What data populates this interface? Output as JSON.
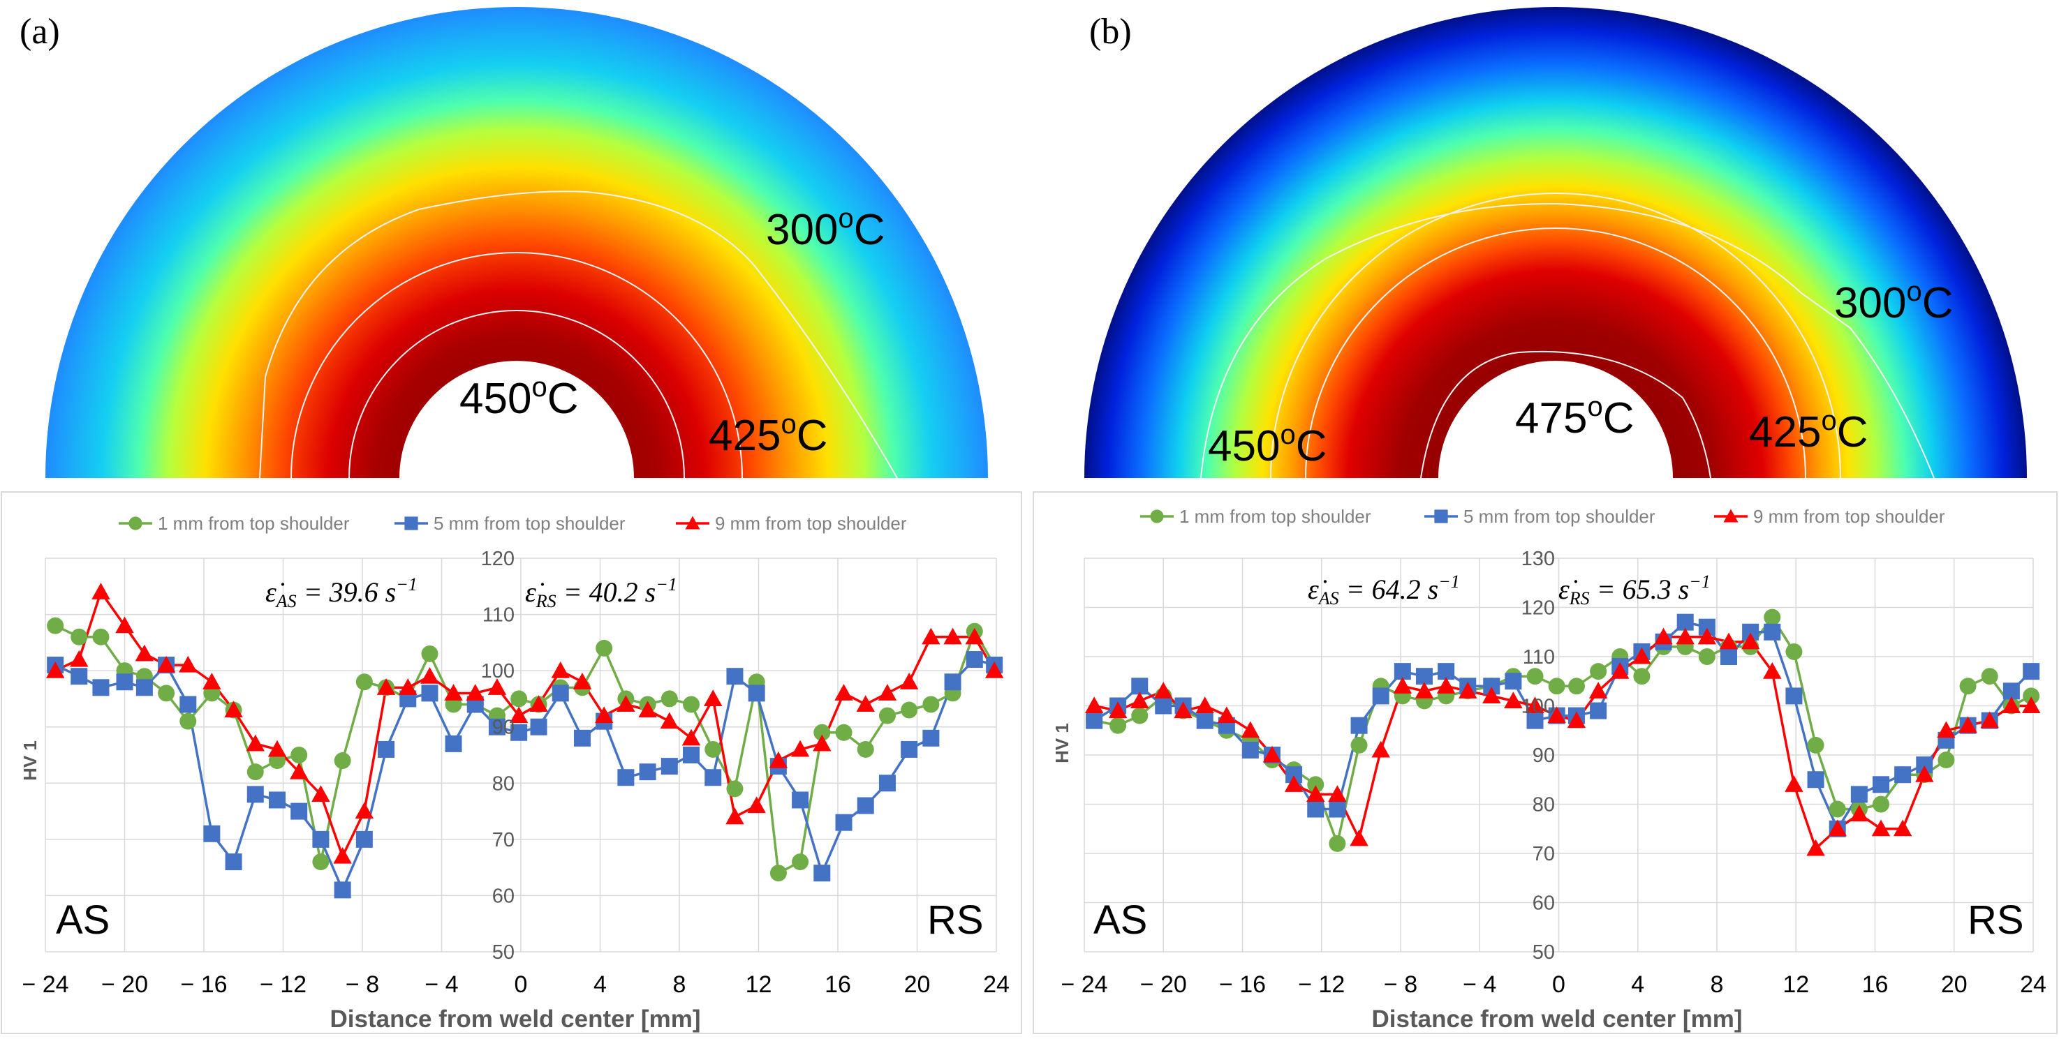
{
  "panels": [
    {
      "label": "(a)",
      "temps": {
        "t300": "300",
        "t425": "425",
        "t450": "450",
        "unit": "o",
        "unit_c": "C"
      },
      "rates": {
        "as_text": "ε̇",
        "as_sub": "AS",
        "as_val": "= 39.6 s",
        "exp": "−1",
        "rs_text": "ε̇",
        "rs_sub": "RS",
        "rs_val": "= 40.2 s"
      },
      "side_left": "AS",
      "side_right": "RS",
      "ylabel": "HV 1",
      "xlabel": "Distance from weld center [mm]"
    },
    {
      "label": "(b)",
      "temps": {
        "t300": "300",
        "t425": "425",
        "t450": "450",
        "t475": "475",
        "unit": "o",
        "unit_c": "C"
      },
      "rates": {
        "as_text": "ε̇",
        "as_sub": "AS",
        "as_val": "= 64.2 s",
        "exp": "−1",
        "rs_text": "ε̇",
        "rs_sub": "RS",
        "rs_val": "= 65.3 s"
      },
      "side_left": "AS",
      "side_right": "RS",
      "ylabel": "HV 1",
      "xlabel": "Distance from weld center [mm]"
    }
  ],
  "chart_data": [
    {
      "type": "line",
      "panel": "(a)",
      "xlabel": "Distance from weld center [mm]",
      "ylabel": "HV 1",
      "xlim": [
        -24,
        24
      ],
      "ylim": [
        50,
        120
      ],
      "xticks": [
        -24,
        -20,
        -16,
        -12,
        -8,
        -4,
        0,
        4,
        8,
        12,
        16,
        20,
        24
      ],
      "xtick_labels": [
        "− 24",
        "− 20",
        "− 16",
        "− 12",
        "− 8",
        "− 4",
        "0",
        "4",
        "8",
        "12",
        "16",
        "20",
        "24"
      ],
      "yticks": [
        50,
        60,
        70,
        80,
        90,
        100,
        110,
        120
      ],
      "grid": true,
      "legend_position": "top",
      "series": [
        {
          "name": "1 mm from top shoulder",
          "color": "#70ad47",
          "marker": "circle",
          "x": [
            -23.5,
            -22.3,
            -21.2,
            -20,
            -19,
            -17.9,
            -16.8,
            -15.6,
            -14.5,
            -13.4,
            -12.3,
            -11.2,
            -10.1,
            -9,
            -7.9,
            -6.8,
            -5.7,
            -4.6,
            -3.4,
            -2.3,
            -1.2,
            -0.1,
            0.9,
            2,
            3.1,
            4.2,
            5.3,
            6.4,
            7.5,
            8.6,
            9.7,
            10.8,
            11.9,
            13,
            14.1,
            15.2,
            16.3,
            17.4,
            18.5,
            19.6,
            20.7,
            21.8,
            22.9,
            23.9
          ],
          "values": [
            108,
            106,
            106,
            100,
            99,
            96,
            91,
            96,
            93,
            82,
            84,
            85,
            66,
            84,
            98,
            97,
            95,
            103,
            94,
            94,
            92,
            95,
            94,
            97,
            97,
            104,
            95,
            94,
            95,
            94,
            86,
            79,
            98,
            64,
            66,
            89,
            89,
            86,
            92,
            93,
            94,
            96,
            107,
            101
          ]
        },
        {
          "name": "5 mm from top shoulder",
          "color": "#4472c4",
          "marker": "square",
          "x": [
            -23.5,
            -22.3,
            -21.2,
            -20,
            -19,
            -17.9,
            -16.8,
            -15.6,
            -14.5,
            -13.4,
            -12.3,
            -11.2,
            -10.1,
            -9,
            -7.9,
            -6.8,
            -5.7,
            -4.6,
            -3.4,
            -2.3,
            -1.2,
            -0.1,
            0.9,
            2,
            3.1,
            4.2,
            5.3,
            6.4,
            7.5,
            8.6,
            9.7,
            10.8,
            11.9,
            13,
            14.1,
            15.2,
            16.3,
            17.4,
            18.5,
            19.6,
            20.7,
            21.8,
            22.9,
            23.9
          ],
          "values": [
            101,
            99,
            97,
            98,
            97,
            101,
            94,
            71,
            66,
            78,
            77,
            75,
            70,
            61,
            70,
            86,
            95,
            96,
            87,
            94,
            90,
            89,
            90,
            96,
            88,
            91,
            81,
            82,
            83,
            85,
            81,
            99,
            96,
            83,
            77,
            64,
            73,
            76,
            80,
            86,
            88,
            98,
            102,
            101
          ]
        },
        {
          "name": "9 mm from top shoulder",
          "color": "#ff0000",
          "marker": "triangle",
          "x": [
            -23.5,
            -22.3,
            -21.2,
            -20,
            -19,
            -17.9,
            -16.8,
            -15.6,
            -14.5,
            -13.4,
            -12.3,
            -11.2,
            -10.1,
            -9,
            -7.9,
            -6.8,
            -5.7,
            -4.6,
            -3.4,
            -2.3,
            -1.2,
            -0.1,
            0.9,
            2,
            3.1,
            4.2,
            5.3,
            6.4,
            7.5,
            8.6,
            9.7,
            10.8,
            11.9,
            13,
            14.1,
            15.2,
            16.3,
            17.4,
            18.5,
            19.6,
            20.7,
            21.8,
            22.9,
            23.9
          ],
          "values": [
            100,
            102,
            114,
            108,
            103,
            101,
            101,
            98,
            93,
            87,
            86,
            82,
            78,
            67,
            75,
            97,
            97,
            99,
            96,
            96,
            97,
            92,
            94,
            100,
            98,
            92,
            94,
            93,
            91,
            88,
            95,
            74,
            76,
            84,
            86,
            87,
            96,
            94,
            96,
            98,
            106,
            106,
            106,
            100
          ]
        }
      ]
    },
    {
      "type": "line",
      "panel": "(b)",
      "xlabel": "Distance from weld center [mm]",
      "ylabel": "HV 1",
      "xlim": [
        -24,
        24
      ],
      "ylim": [
        50,
        130
      ],
      "xticks": [
        -24,
        -20,
        -16,
        -12,
        -8,
        -4,
        0,
        4,
        8,
        12,
        16,
        20,
        24
      ],
      "xtick_labels": [
        "− 24",
        "− 20",
        "− 16",
        "− 12",
        "− 8",
        "− 4",
        "0",
        "4",
        "8",
        "12",
        "16",
        "20",
        "24"
      ],
      "yticks": [
        50,
        60,
        70,
        80,
        90,
        100,
        110,
        120,
        130
      ],
      "grid": true,
      "legend_position": "top",
      "series": [
        {
          "name": "1 mm from top shoulder",
          "color": "#70ad47",
          "marker": "circle",
          "x": [
            -23.5,
            -22.3,
            -21.2,
            -20,
            -19,
            -17.9,
            -16.8,
            -15.6,
            -14.5,
            -13.4,
            -12.3,
            -11.2,
            -10.1,
            -9,
            -7.9,
            -6.8,
            -5.7,
            -4.6,
            -3.4,
            -2.3,
            -1.2,
            -0.1,
            0.9,
            2,
            3.1,
            4.2,
            5.3,
            6.4,
            7.5,
            8.6,
            9.7,
            10.8,
            11.9,
            13,
            14.1,
            15.2,
            16.3,
            17.4,
            18.5,
            19.6,
            20.7,
            21.8,
            22.9,
            23.9
          ],
          "values": [
            97,
            96,
            98,
            102,
            99,
            97,
            95,
            93,
            89,
            87,
            84,
            72,
            92,
            104,
            102,
            101,
            102,
            103,
            104,
            106,
            106,
            104,
            104,
            107,
            110,
            106,
            112,
            112,
            110,
            112,
            112,
            118,
            111,
            92,
            79,
            79,
            80,
            86,
            86,
            89,
            104,
            106,
            100,
            102
          ]
        },
        {
          "name": "5 mm from top shoulder",
          "color": "#4472c4",
          "marker": "square",
          "x": [
            -23.5,
            -22.3,
            -21.2,
            -20,
            -19,
            -17.9,
            -16.8,
            -15.6,
            -14.5,
            -13.4,
            -12.3,
            -11.2,
            -10.1,
            -9,
            -7.9,
            -6.8,
            -5.7,
            -4.6,
            -3.4,
            -2.3,
            -1.2,
            -0.1,
            0.9,
            2,
            3.1,
            4.2,
            5.3,
            6.4,
            7.5,
            8.6,
            9.7,
            10.8,
            11.9,
            13,
            14.1,
            15.2,
            16.3,
            17.4,
            18.5,
            19.6,
            20.7,
            21.8,
            22.9,
            23.9
          ],
          "values": [
            97,
            100,
            104,
            100,
            100,
            97,
            96,
            91,
            90,
            86,
            79,
            79,
            96,
            102,
            107,
            106,
            107,
            104,
            104,
            105,
            97,
            98,
            98,
            99,
            108,
            111,
            113,
            117,
            116,
            110,
            115,
            115,
            102,
            85,
            75,
            82,
            84,
            86,
            88,
            93,
            96,
            97,
            103,
            107
          ]
        },
        {
          "name": "9 mm from top shoulder",
          "color": "#ff0000",
          "marker": "triangle",
          "x": [
            -23.5,
            -22.3,
            -21.2,
            -20,
            -19,
            -17.9,
            -16.8,
            -15.6,
            -14.5,
            -13.4,
            -12.3,
            -11.2,
            -10.1,
            -9,
            -7.9,
            -6.8,
            -5.7,
            -4.6,
            -3.4,
            -2.3,
            -1.2,
            -0.1,
            0.9,
            2,
            3.1,
            4.2,
            5.3,
            6.4,
            7.5,
            8.6,
            9.7,
            10.8,
            11.9,
            13,
            14.1,
            15.2,
            16.3,
            17.4,
            18.5,
            19.6,
            20.7,
            21.8,
            22.9,
            23.9
          ],
          "values": [
            100,
            99,
            101,
            103,
            99,
            100,
            98,
            95,
            90,
            84,
            82,
            82,
            73,
            91,
            104,
            103,
            104,
            103,
            102,
            101,
            100,
            98,
            97,
            103,
            107,
            110,
            114,
            114,
            114,
            113,
            113,
            107,
            84,
            71,
            75,
            78,
            75,
            75,
            86,
            95,
            96,
            97,
            100,
            100
          ]
        }
      ]
    }
  ]
}
